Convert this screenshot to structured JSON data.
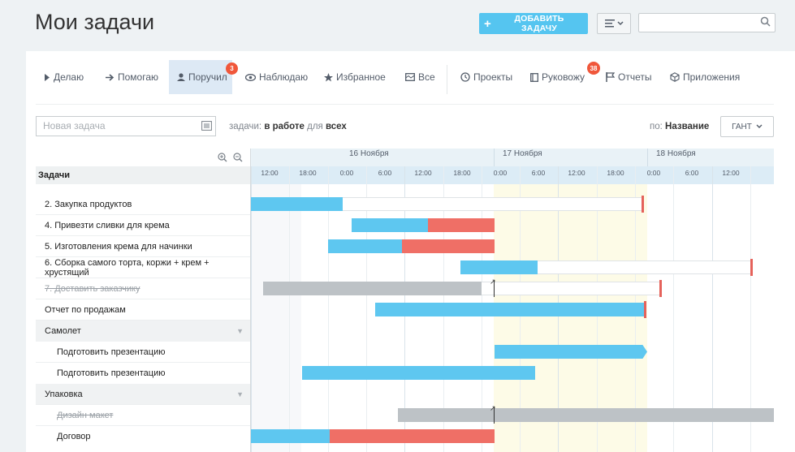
{
  "page": {
    "title": "Мои задачи"
  },
  "toolbar": {
    "add_label": "ДОБАВИТЬ ЗАДАЧУ",
    "search_placeholder": ""
  },
  "tabs": [
    {
      "label": "Делаю",
      "icon": "play-icon"
    },
    {
      "label": "Помогаю",
      "icon": "arrow-right-icon"
    },
    {
      "label": "Поручил",
      "icon": "person-icon",
      "badge": "3",
      "active": true
    },
    {
      "label": "Наблюдаю",
      "icon": "eye-icon"
    },
    {
      "label": "Избранное",
      "icon": "star-icon"
    },
    {
      "label": "Все",
      "icon": "folder-icon"
    },
    {
      "label": "Проекты",
      "icon": "clock-icon"
    },
    {
      "label": "Руковожу",
      "icon": "book-icon",
      "badge": "38"
    },
    {
      "label": "Отчеты",
      "icon": "flag-icon"
    },
    {
      "label": "Приложения",
      "icon": "cube-icon"
    }
  ],
  "filter": {
    "new_task_placeholder": "Новая задача",
    "prefix": "задачи:",
    "status": "в работе",
    "for": "для",
    "scope": "всех",
    "sort_prefix": "по:",
    "sort_value": "Название",
    "view_label": "ГАНТ"
  },
  "gantt": {
    "column_header": "Задачи",
    "days": [
      "16 Ноября",
      "17 Ноября",
      "18 Ноября"
    ],
    "hours": [
      "12:00",
      "18:00",
      "0:00",
      "6:00",
      "12:00",
      "18:00",
      "0:00",
      "6:00",
      "12:00",
      "18:00",
      "0:00",
      "6:00",
      "12:00"
    ],
    "rows": [
      {
        "label": "2. Закупка продуктов",
        "kind": "task"
      },
      {
        "label": "4. Привезти сливки для крема",
        "kind": "task"
      },
      {
        "label": "5. Изготовления крема для начинки",
        "kind": "task"
      },
      {
        "label": "6. Сборка самого торта, коржи + крем + хрустящий",
        "kind": "task"
      },
      {
        "label": "7. Доставить заказчику",
        "kind": "done"
      },
      {
        "label": "Отчет по продажам",
        "kind": "task"
      },
      {
        "label": "Самолет",
        "kind": "group"
      },
      {
        "label": "Подготовить презентацию",
        "kind": "subtask"
      },
      {
        "label": "Подготовить презентацию",
        "kind": "subtask"
      },
      {
        "label": "Упаковка",
        "kind": "group"
      },
      {
        "label": "Дизайн макет",
        "kind": "done-sub"
      },
      {
        "label": "Договор",
        "kind": "subtask"
      }
    ]
  },
  "colors": {
    "accent": "#55c5f0",
    "bar_blue": "#5ec7f0",
    "bar_red": "#ef6f66",
    "bar_gray": "#bdc2c6",
    "deadline": "#e5625b",
    "today_col": "#fdfbe7"
  }
}
